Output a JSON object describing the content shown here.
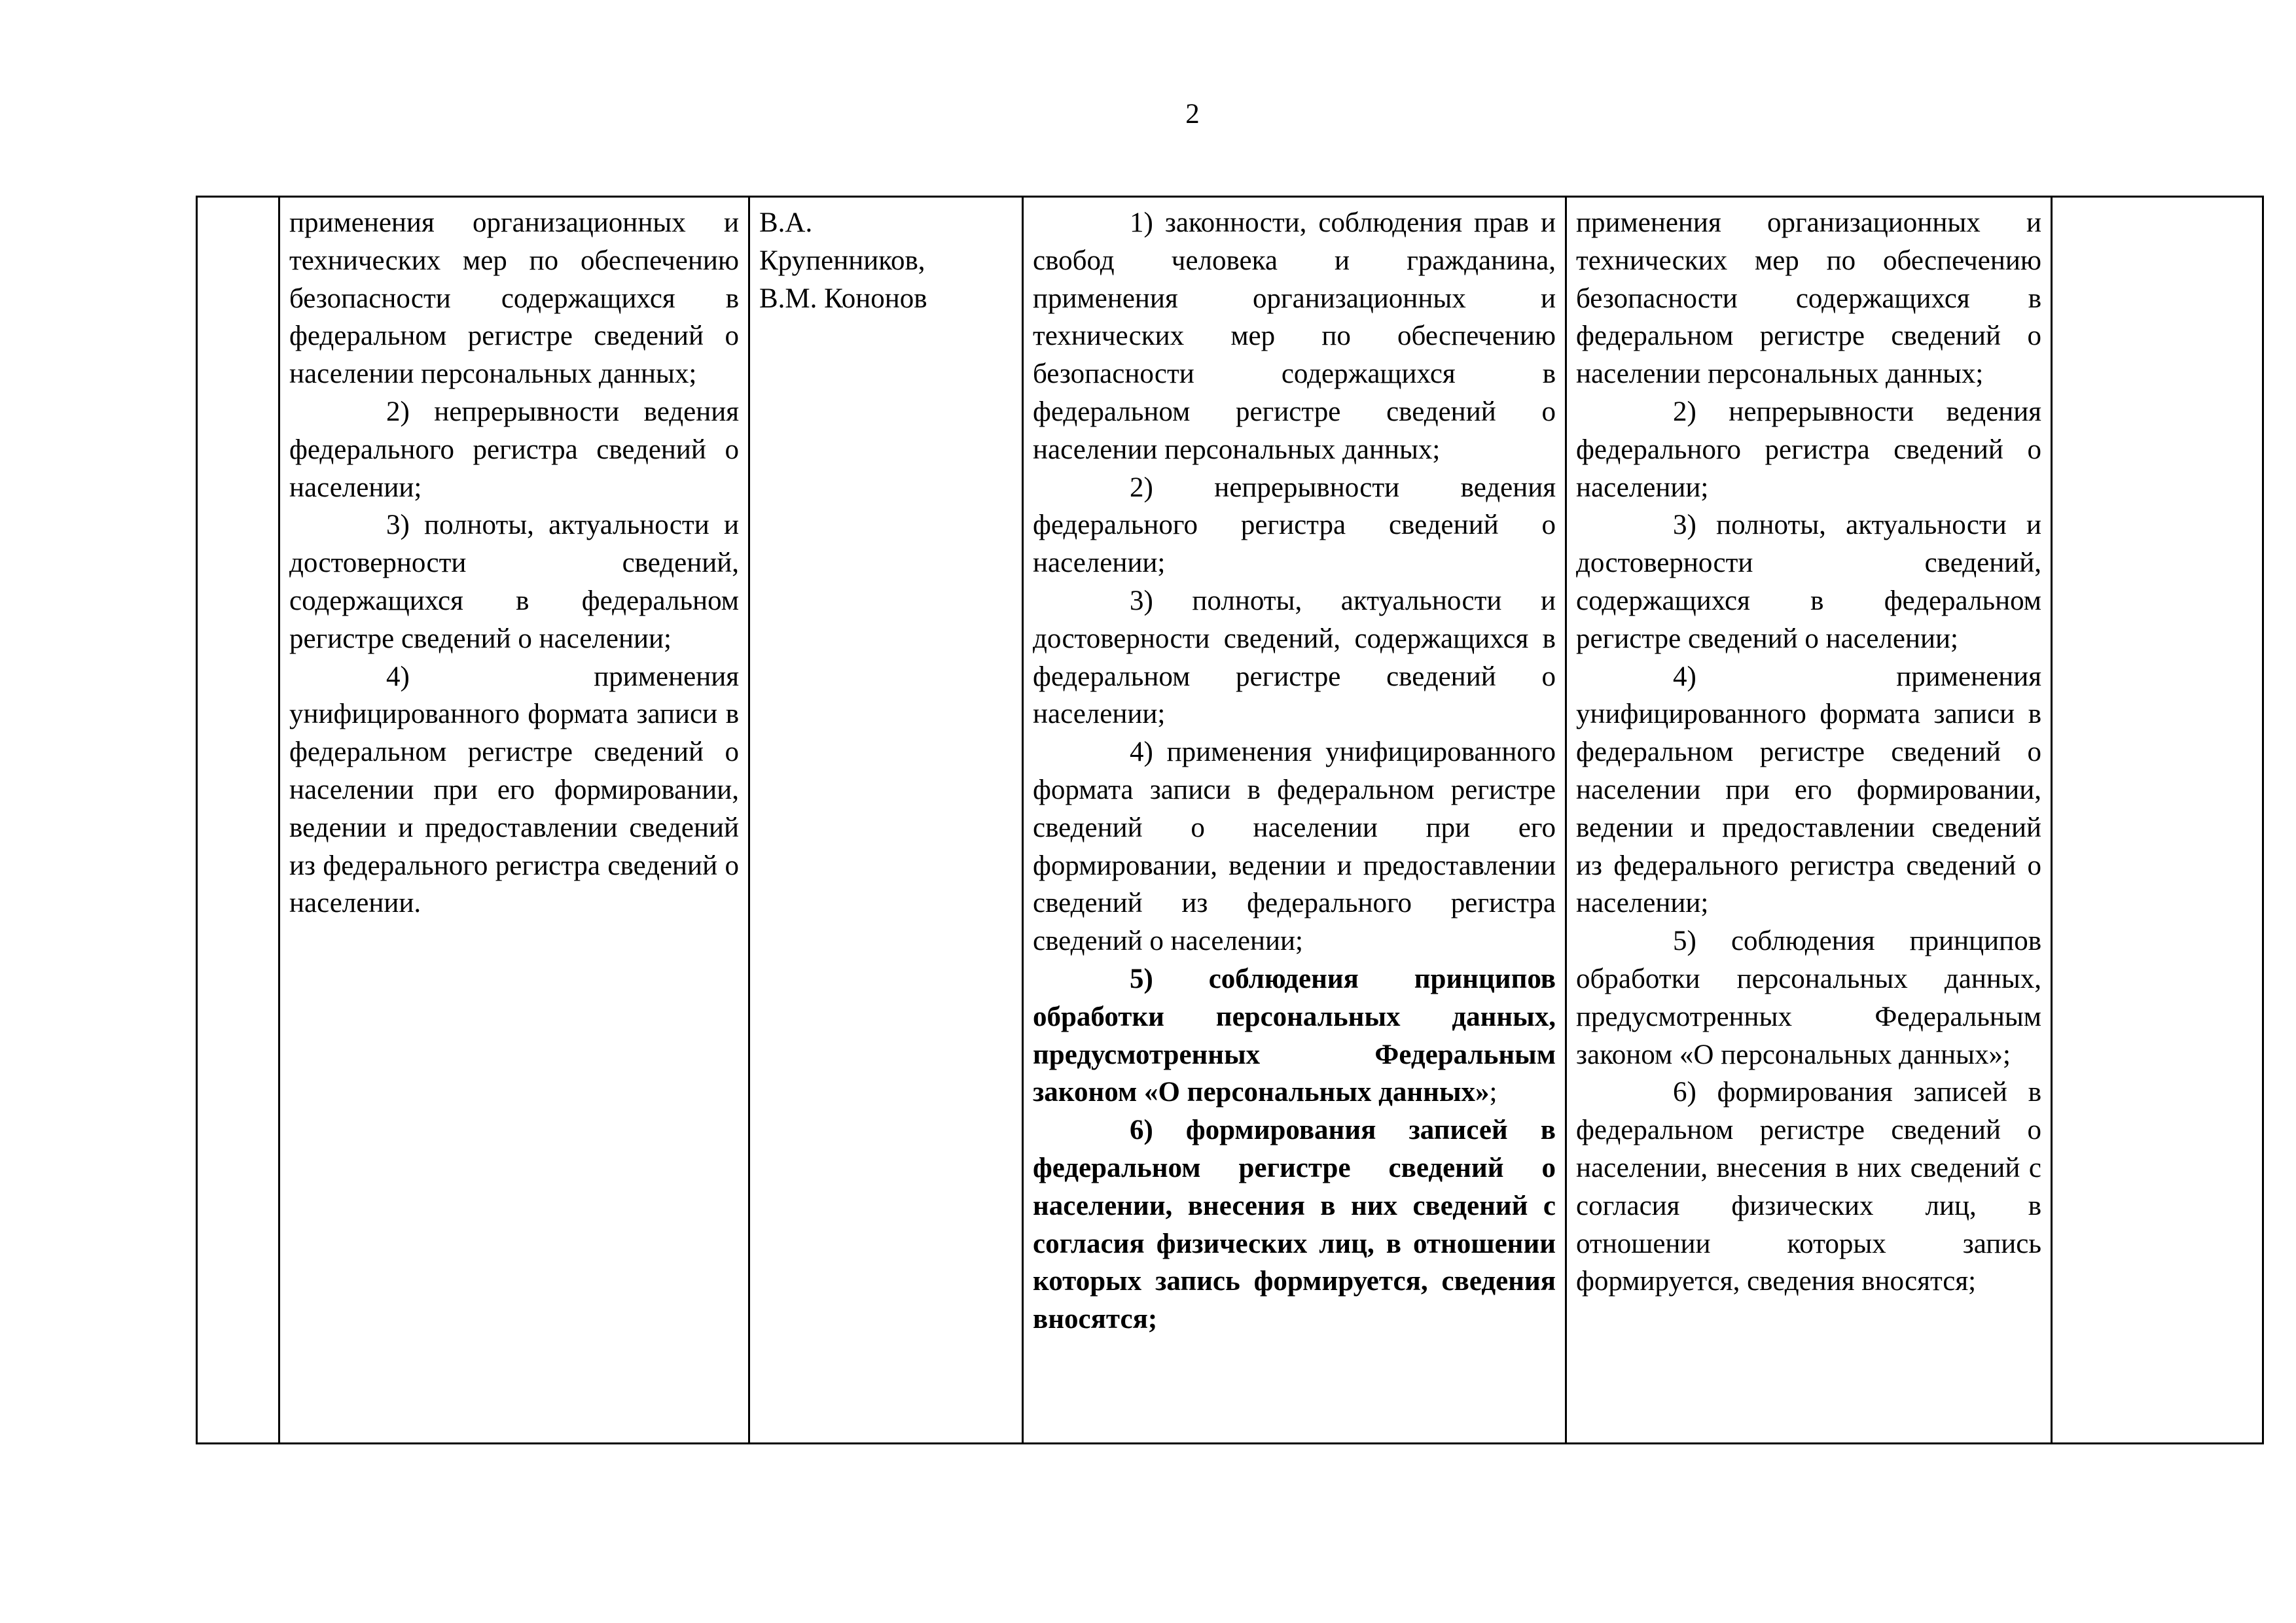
{
  "page_number": "2",
  "table": {
    "columns": [
      {
        "paragraphs": [
          "применения организационных и технических мер по обеспечению безопасности содержащихся в федеральном регистре сведений о населении персональных данных;",
          "2) непрерывности ведения федерального регистра сведений о населении;",
          "3) полноты, актуальности и достоверности сведений, содержащихся в федеральном регистре сведений о населении;",
          "4) применения унифицированного формата записи в федеральном регистре сведений о населении при его формировании, ведении и предоставлении сведений из федерального регистра сведений о населении."
        ]
      },
      {
        "lines": [
          "В.А.",
          "Крупенников,",
          "В.М. Кононов"
        ]
      },
      {
        "paragraphs": [
          "1) законности, соблюдения прав и свобод человека и гражданина, применения организационных и технических мер по обеспечению безопасности содержащихся в федеральном регистре сведений о населении персональных данных;",
          "2) непрерывности ведения федерального регистра сведений о населении;",
          "3) полноты, актуальности и достоверности сведений, содержащихся в федеральном регистре сведений о населении;",
          "4) применения унифицированного формата записи в федеральном регистре сведений о населении при его формировании, ведении и предоставлении сведений из федерального регистра сведений о населении;",
          [
            {
              "text": "5) соблюдения принципов обработки персональных данных, предусмотренных Федеральным законом «О персональных данных»",
              "bold": true
            },
            {
              "text": ";"
            }
          ],
          [
            {
              "text": "6) формирования записей в федеральном регистре сведений о населении, внесения в них сведений с согласия физических лиц, в отношении которых запись формируется, сведения вносятся;",
              "bold": true
            }
          ]
        ]
      },
      {
        "paragraphs": [
          "применения организационных и технических мер по обеспечению безопасности содержащихся в федеральном регистре сведений о населении персональных данных;",
          "2) непрерывности ведения федерального регистра сведений о населении;",
          "3) полноты, актуальности и достоверности сведений, содержащихся в федеральном регистре сведений о населении;",
          "4) применения унифицированного формата записи в федеральном регистре сведений о населении при его формировании, ведении и предоставлении сведений из федерального регистра сведений о населении;",
          "5) соблюдения принципов обработки персональных данных, предусмотренных Федеральным законом «О персональных данных»;",
          "6) формирования записей в федеральном регистре сведений о населении, внесения в них сведений с согласия физических лиц, в отношении которых запись формируется, сведения вносятся;"
        ]
      }
    ]
  }
}
